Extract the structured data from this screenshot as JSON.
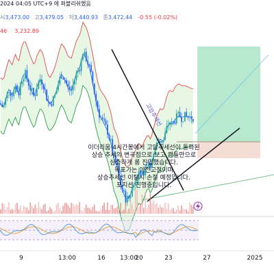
{
  "header": {
    "published": "2024 04:05 UTC+9 에 퍼블리쉬했음",
    "open_label": "시",
    "open": "3,473.00",
    "high_label": "고",
    "high": "3,479.05",
    "low_label": "저",
    "low": "3,440.93",
    "close_label": "종",
    "close": "3,472.44",
    "change": "-0.55 (-0.02%)",
    "indicator_prefix": "46",
    "indicator_value": "3,232.89"
  },
  "annotations": {
    "note_lines": [
      "이더리움 4시간봉에서 고압추세선이 돌파된",
      "상승 추세의 변곡점으로 보고 캔들만으로",
      "심층하게 롱 진입했습니다.",
      "목표가는 이전고점이며",
      "상승추세선 이탈시 손절 예정입니다.",
      "포지션 진행중입니다."
    ],
    "diagonal_label": "고압추세선"
  },
  "colors": {
    "up": "#26a69a",
    "down": "#2962ff",
    "upper_band": "#e05a5a",
    "lower_band": "#3aa55a",
    "band_fill": "#d9f2d0",
    "target_zone": "#a6e3c3",
    "stop_zone": "#f3d9cf",
    "oscillator": "#5b9bd5",
    "oscillator_signal": "#e8a640"
  },
  "icons": {
    "flash": "lightning-icon"
  },
  "chart_data": {
    "type": "candlestick",
    "title": "",
    "xlabel": "",
    "ylabel": "",
    "x_tick_labels": [
      "9",
      "13:00",
      "16",
      "13:00",
      "20",
      "23",
      "27",
      "2025"
    ],
    "trend": {
      "x": [
        0,
        5,
        9,
        13,
        18,
        22,
        27,
        32,
        36,
        41,
        45,
        50,
        54,
        59,
        63,
        68,
        72,
        77,
        81,
        86,
        90,
        95,
        99,
        104,
        108,
        112,
        117,
        121,
        126,
        130,
        135,
        139,
        144,
        148,
        153,
        157,
        162,
        166,
        171,
        175,
        180,
        184,
        189,
        193,
        198,
        202,
        207,
        211,
        216,
        220,
        225,
        229,
        234,
        238,
        243,
        247,
        252,
        256,
        261,
        265,
        270,
        274,
        279,
        283
      ],
      "y": [
        3560,
        3530,
        3600,
        3650,
        3610,
        3680,
        3620,
        3720,
        3760,
        3700,
        3650,
        3600,
        3670,
        3720,
        3690,
        3600,
        3550,
        3580,
        3620,
        3700,
        3750,
        3710,
        3660,
        3640,
        3700,
        3760,
        3800,
        3880,
        3850,
        3800,
        3700,
        3600,
        3500,
        3460,
        3420,
        3380,
        3300,
        3200,
        3150,
        3060,
        2980,
        2940,
        2950,
        3010,
        3060,
        3110,
        3090,
        3140,
        3190,
        3150,
        3230,
        3290,
        3330,
        3310,
        3390,
        3440,
        3420,
        3460,
        3480,
        3470,
        3475,
        3472,
        3470,
        3472
      ]
    }
  }
}
